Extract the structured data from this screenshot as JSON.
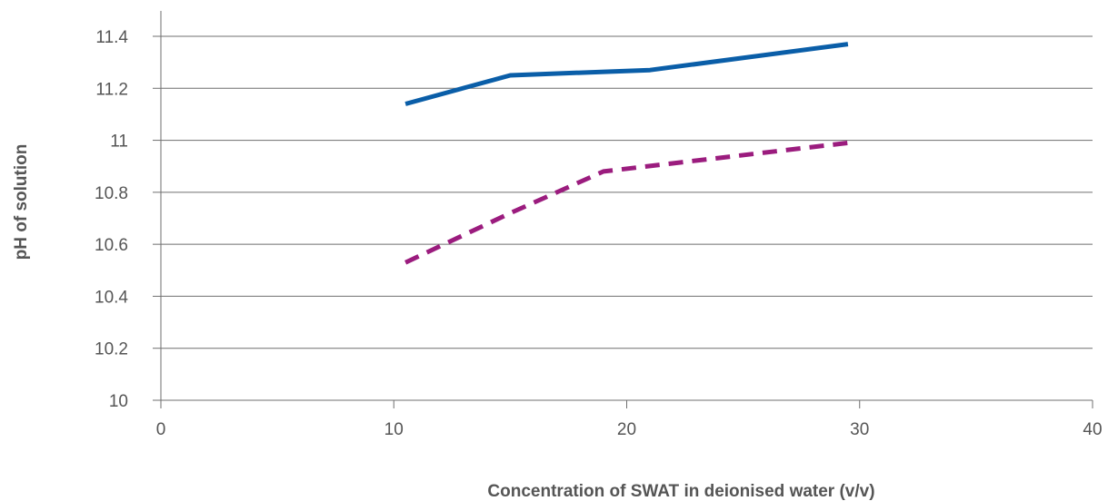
{
  "chart_data": {
    "type": "line",
    "title": "",
    "xlabel": "Concentration of SWAT in deionised water (v/v)",
    "ylabel": "pH of solution",
    "xlim": [
      0,
      40
    ],
    "ylim": [
      10,
      11.4
    ],
    "x_ticks": [
      0,
      10,
      20,
      30,
      40
    ],
    "x_tick_labels": [
      "0",
      "10",
      "20",
      "30",
      "40"
    ],
    "y_ticks": [
      10,
      10.2,
      10.4,
      10.6,
      10.8,
      11,
      11.2,
      11.4
    ],
    "y_tick_labels": [
      "10",
      "10.2",
      "10.4",
      "10.6",
      "10.8",
      "11",
      "11.2",
      "11.4"
    ],
    "grid": {
      "horizontal": true,
      "vertical": false
    },
    "legend": "none",
    "series": [
      {
        "style": "solid",
        "color": "#0a5ea8",
        "x": [
          10.5,
          15,
          21,
          29.5
        ],
        "y": [
          11.14,
          11.25,
          11.27,
          11.37
        ]
      },
      {
        "style": "dashed",
        "color": "#9b1c7e",
        "x": [
          10.5,
          15,
          19,
          29.5
        ],
        "y": [
          10.53,
          10.72,
          10.88,
          10.99
        ]
      }
    ]
  }
}
